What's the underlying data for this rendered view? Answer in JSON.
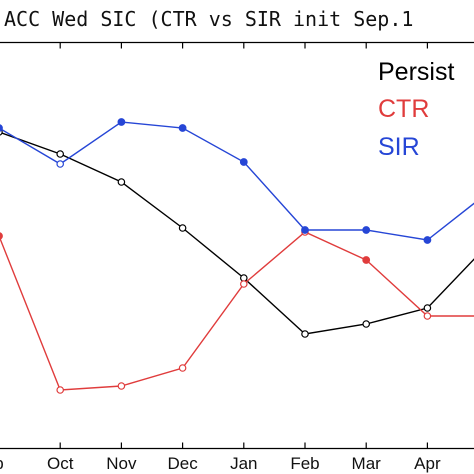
{
  "chart_data": {
    "type": "line",
    "title": "ACC Wed SIC (CTR vs SIR init Sep.1",
    "xlabel": "",
    "ylabel": "",
    "categories": [
      "p",
      "Oct",
      "Nov",
      "Dec",
      "Jan",
      "Feb",
      "Mar",
      "Apr",
      ""
    ],
    "legend_position": "top-right",
    "grid": false,
    "ylim": [
      0,
      1
    ],
    "series": [
      {
        "name": "Persist",
        "color": "#000000",
        "marker": "open-circle",
        "values": [
          0.79,
          0.735,
          0.665,
          0.55,
          0.425,
          0.285,
          0.31,
          0.35,
          0.51
        ]
      },
      {
        "name": "CTR",
        "color": "#e03c3c",
        "marker": "mixed",
        "values": [
          0.53,
          0.145,
          0.155,
          0.2,
          0.41,
          0.54,
          0.47,
          0.33,
          0.33
        ]
      },
      {
        "name": "SIR",
        "color": "#2646d6",
        "marker": "mixed",
        "values": [
          0.8,
          0.71,
          0.815,
          0.8,
          0.715,
          0.545,
          0.545,
          0.52,
          0.64
        ]
      }
    ]
  }
}
